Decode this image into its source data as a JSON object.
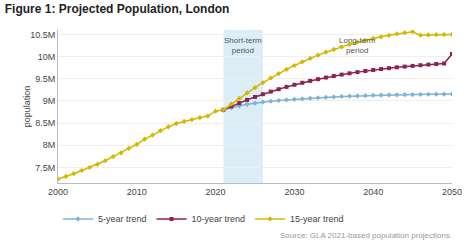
{
  "chart_data": {
    "type": "line",
    "title": "Figure 1: Projected Population, London",
    "source": "Source: GLA 2021-based population projections",
    "ylabel": "population",
    "xlim": [
      2000,
      2050
    ],
    "xticks": [
      2000,
      2010,
      2020,
      2030,
      2040,
      2050
    ],
    "ylim": [
      7150000,
      10600000
    ],
    "yticks": [
      {
        "value": 7500000,
        "label": "7.5M"
      },
      {
        "value": 8000000,
        "label": "8M"
      },
      {
        "value": 8500000,
        "label": "8.5M"
      },
      {
        "value": 9000000,
        "label": "9M"
      },
      {
        "value": 9500000,
        "label": "9.5M"
      },
      {
        "value": 10000000,
        "label": "10M"
      },
      {
        "value": 10500000,
        "label": "10.5M"
      }
    ],
    "grid": "y",
    "legend": "bottom",
    "spans": [
      {
        "range": [
          2021,
          2026
        ],
        "color": "#dbedf7"
      }
    ],
    "annotations": [
      {
        "text": "Short-term\nperiod",
        "x": 2023.5,
        "y": 10520000
      },
      {
        "text": "Long-term\nperiod",
        "x": 2038,
        "y": 10520000
      }
    ],
    "series": [
      {
        "color": "#d4b800",
        "marker": "diamond",
        "x": [
          2000,
          2001,
          2002,
          2003,
          2004,
          2005,
          2006,
          2007,
          2008,
          2009,
          2010,
          2011,
          2012,
          2013,
          2014,
          2015,
          2016,
          2017,
          2018,
          2019,
          2020,
          2021
        ],
        "values": [
          7240000,
          7298000,
          7360000,
          7432000,
          7500000,
          7572000,
          7652000,
          7745000,
          7830000,
          7932000,
          8023000,
          8140000,
          8230000,
          8330000,
          8416000,
          8490000,
          8538000,
          8580000,
          8622000,
          8660000,
          8770000,
          8800000
        ]
      },
      {
        "name": "5-year trend",
        "color": "#7fb3d3",
        "marker": "diamond",
        "x": [
          2021,
          2022,
          2023,
          2024,
          2025,
          2026,
          2027,
          2028,
          2029,
          2030,
          2031,
          2032,
          2033,
          2034,
          2035,
          2036,
          2037,
          2038,
          2039,
          2040,
          2041,
          2042,
          2043,
          2044,
          2045,
          2046,
          2047,
          2048,
          2049,
          2050
        ],
        "values": [
          8800000,
          8850000,
          8890000,
          8925000,
          8953000,
          8975000,
          8993000,
          9010000,
          9024000,
          9036000,
          9048000,
          9060000,
          9072000,
          9083000,
          9092000,
          9100000,
          9107000,
          9114000,
          9120000,
          9126000,
          9131000,
          9135000,
          9139000,
          9142000,
          9145000,
          9148000,
          9151000,
          9153000,
          9155000,
          9158000
        ]
      },
      {
        "name": "10-year trend",
        "color": "#8b2252",
        "marker": "square",
        "x": [
          2021,
          2022,
          2023,
          2024,
          2025,
          2026,
          2027,
          2028,
          2029,
          2030,
          2031,
          2032,
          2033,
          2034,
          2035,
          2036,
          2037,
          2038,
          2039,
          2040,
          2041,
          2042,
          2043,
          2044,
          2045,
          2046,
          2047,
          2048,
          2049,
          2050
        ],
        "values": [
          8800000,
          8878000,
          8952000,
          9024000,
          9090000,
          9152000,
          9210000,
          9265000,
          9317000,
          9365000,
          9410000,
          9452000,
          9491000,
          9528000,
          9562000,
          9594000,
          9623000,
          9650000,
          9675000,
          9698000,
          9720000,
          9740000,
          9758000,
          9775000,
          9791000,
          9806000,
          9820000,
          9833000,
          9845000,
          10060000
        ]
      },
      {
        "name": "15-year trend",
        "color": "#d4b800",
        "marker": "diamond",
        "x": [
          2021,
          2022,
          2023,
          2024,
          2025,
          2026,
          2027,
          2028,
          2029,
          2030,
          2031,
          2032,
          2033,
          2034,
          2035,
          2036,
          2037,
          2038,
          2039,
          2040,
          2041,
          2042,
          2043,
          2044,
          2045,
          2046,
          2047,
          2048,
          2049,
          2050
        ],
        "values": [
          8800000,
          8930000,
          9058000,
          9182000,
          9300000,
          9412000,
          9518000,
          9618000,
          9712000,
          9800000,
          9882000,
          9960000,
          10033000,
          10100000,
          10163000,
          10221000,
          10275000,
          10324000,
          10369000,
          10410000,
          10447000,
          10481000,
          10511000,
          10538000,
          10562000,
          10484000,
          10490000,
          10495000,
          10498000,
          10500000
        ]
      }
    ]
  }
}
